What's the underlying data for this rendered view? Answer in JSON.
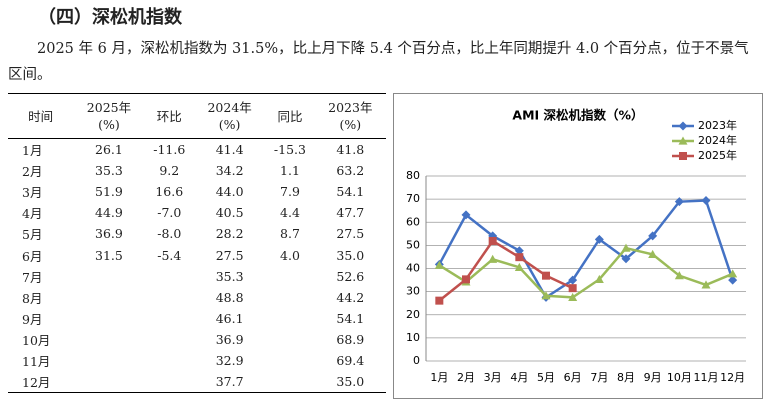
{
  "heading": "（四）深松机指数",
  "paragraph": "2025 年 6 月，深松机指数为 31.5%，比上月下降 5.4 个百分点，比上年同期提升 4.0 个百分点，位于不景气区间。",
  "table": {
    "headers": [
      [
        "时间"
      ],
      [
        "2025年",
        "(%)"
      ],
      [
        "环比"
      ],
      [
        "2024年",
        "(%)"
      ],
      [
        "同比"
      ],
      [
        "2023年",
        "(%)"
      ]
    ],
    "rows": [
      [
        "1月",
        "26.1",
        "-11.6",
        "41.4",
        "-15.3",
        "41.8"
      ],
      [
        "2月",
        "35.3",
        "9.2",
        "34.2",
        "1.1",
        "63.2"
      ],
      [
        "3月",
        "51.9",
        "16.6",
        "44.0",
        "7.9",
        "54.1"
      ],
      [
        "4月",
        "44.9",
        "-7.0",
        "40.5",
        "4.4",
        "47.7"
      ],
      [
        "5月",
        "36.9",
        "-8.0",
        "28.2",
        "8.7",
        "27.5"
      ],
      [
        "6月",
        "31.5",
        "-5.4",
        "27.5",
        "4.0",
        "35.0"
      ],
      [
        "7月",
        null,
        null,
        "35.3",
        null,
        "52.6"
      ],
      [
        "8月",
        null,
        null,
        "48.8",
        null,
        "44.2"
      ],
      [
        "9月",
        null,
        null,
        "46.1",
        null,
        "54.1"
      ],
      [
        "10月",
        null,
        null,
        "36.9",
        null,
        "68.9"
      ],
      [
        "11月",
        null,
        null,
        "32.9",
        null,
        "69.4"
      ],
      [
        "12月",
        null,
        null,
        "37.7",
        null,
        "35.0"
      ]
    ]
  },
  "chart_data": {
    "type": "line",
    "title": "AMI 深松机指数（%）",
    "categories": [
      "1月",
      "2月",
      "3月",
      "4月",
      "5月",
      "6月",
      "7月",
      "8月",
      "9月",
      "10月",
      "11月",
      "12月"
    ],
    "series": [
      {
        "name": "2023年",
        "color": "#4472c4",
        "marker": "diamond",
        "values": [
          41.8,
          63.2,
          54.1,
          47.7,
          27.5,
          35.0,
          52.6,
          44.2,
          54.1,
          68.9,
          69.4,
          35.0
        ]
      },
      {
        "name": "2024年",
        "color": "#9bbb59",
        "marker": "triangle",
        "values": [
          41.4,
          34.2,
          44.0,
          40.5,
          28.2,
          27.5,
          35.3,
          48.8,
          46.1,
          36.9,
          32.9,
          37.7
        ]
      },
      {
        "name": "2025年",
        "color": "#c0504d",
        "marker": "square",
        "values": [
          26.1,
          35.3,
          51.9,
          44.9,
          36.9,
          31.5,
          null,
          null,
          null,
          null,
          null,
          null
        ]
      }
    ],
    "ylim": [
      0,
      80
    ],
    "yticks": [
      0,
      10,
      20,
      30,
      40,
      50,
      60,
      70,
      80
    ],
    "grid": true,
    "legend": "top-right"
  }
}
